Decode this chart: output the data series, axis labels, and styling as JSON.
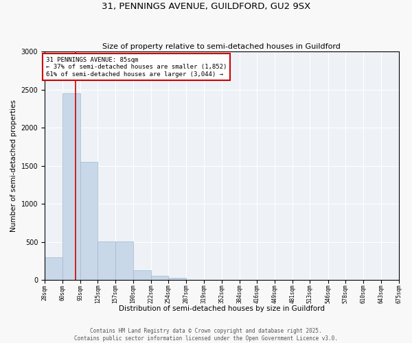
{
  "title": "31, PENNINGS AVENUE, GUILDFORD, GU2 9SX",
  "subtitle": "Size of property relative to semi-detached houses in Guildford",
  "xlabel": "Distribution of semi-detached houses by size in Guildford",
  "ylabel": "Number of semi-detached properties",
  "bin_edges": [
    28,
    60,
    93,
    125,
    157,
    190,
    222,
    254,
    287,
    319,
    352,
    384,
    416,
    449,
    481,
    513,
    546,
    578,
    610,
    643,
    675
  ],
  "bar_heights": [
    300,
    2450,
    1550,
    510,
    510,
    130,
    60,
    30,
    5,
    3,
    2,
    2,
    1,
    1,
    1,
    0,
    0,
    0,
    0,
    0
  ],
  "bar_color": "#c8d8e8",
  "bar_edge_color": "#a0b8d0",
  "property_size": 85,
  "red_line_color": "#cc0000",
  "annotation_text": "31 PENNINGS AVENUE: 85sqm\n← 37% of semi-detached houses are smaller (1,852)\n61% of semi-detached houses are larger (3,044) →",
  "annotation_box_color": "#ffffff",
  "annotation_box_edge": "#cc0000",
  "ylim": [
    0,
    3000
  ],
  "yticks": [
    0,
    500,
    1000,
    1500,
    2000,
    2500,
    3000
  ],
  "background_color": "#eef2f6",
  "fig_background_color": "#f8f8f8",
  "footer_text": "Contains HM Land Registry data © Crown copyright and database right 2025.\nContains public sector information licensed under the Open Government Licence v3.0.",
  "tick_labels": [
    "28sqm",
    "60sqm",
    "93sqm",
    "125sqm",
    "157sqm",
    "190sqm",
    "222sqm",
    "254sqm",
    "287sqm",
    "319sqm",
    "352sqm",
    "384sqm",
    "416sqm",
    "449sqm",
    "481sqm",
    "513sqm",
    "546sqm",
    "578sqm",
    "610sqm",
    "643sqm",
    "675sqm"
  ]
}
